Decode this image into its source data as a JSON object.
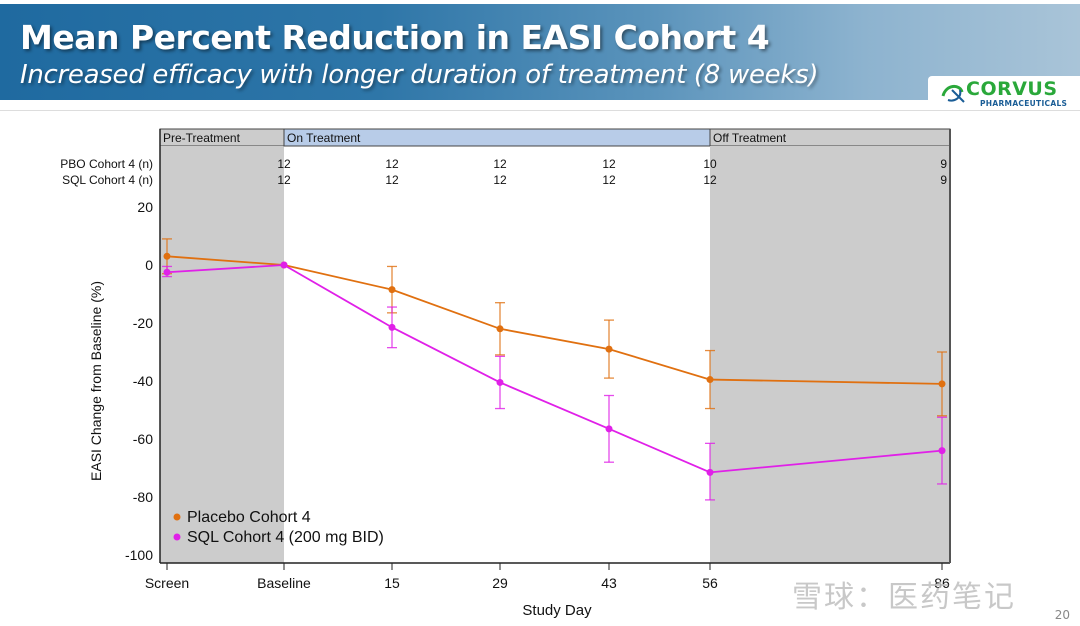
{
  "slide": {
    "title": "Mean Percent Reduction in EASI Cohort 4",
    "subtitle": "Increased efficacy with longer duration of treatment (8 weeks)",
    "logo_name": "CORVUS",
    "logo_sub": "PHARMACEUTICALS",
    "page_number": "20",
    "watermark": "雪球：医药笔记"
  },
  "chart_data": {
    "type": "line",
    "xlabel": "Study Day",
    "ylabel": "EASI Change from Baseline (%)",
    "x_categories": [
      "Screen",
      "Baseline",
      "15",
      "29",
      "43",
      "56",
      "86"
    ],
    "x_values": [
      -14,
      0,
      15,
      29,
      43,
      56,
      86
    ],
    "ylim": [
      -100,
      20
    ],
    "yticks": [
      20,
      0,
      -20,
      -40,
      -60,
      -80,
      -100
    ],
    "phases": [
      {
        "label": "Pre-Treatment",
        "from": "Screen",
        "to": "Baseline",
        "color": "#cccccc"
      },
      {
        "label": "On Treatment",
        "from": "Baseline",
        "to": "56",
        "color": "#b8cce8"
      },
      {
        "label": "Off Treatment",
        "from": "56",
        "to": "86",
        "color": "#cccccc"
      }
    ],
    "n_table": [
      {
        "label": "PBO Cohort 4 (n)",
        "values": [
          "",
          "12",
          "12",
          "12",
          "12",
          "10",
          "9"
        ]
      },
      {
        "label": "SQL Cohort 4 (n)",
        "values": [
          "",
          "12",
          "12",
          "12",
          "12",
          "12",
          "9"
        ]
      }
    ],
    "series": [
      {
        "name": "Placebo Cohort 4",
        "color": "#e07010",
        "values": [
          3,
          0,
          -8.5,
          -22,
          -29,
          -39.5,
          -41
        ],
        "err_upper": [
          9,
          0,
          -0.5,
          -13,
          -19,
          -29.5,
          -30
        ],
        "err_lower": [
          -3,
          0,
          -16.5,
          -31,
          -39,
          -49.5,
          -52
        ]
      },
      {
        "name": "SQL Cohort 4 (200 mg BID)",
        "color": "#e020e8",
        "values": [
          -2.5,
          0,
          -21.5,
          -40.5,
          -56.5,
          -71.5,
          -64
        ],
        "err_upper": [
          -0.5,
          0,
          -14.5,
          -31.5,
          -45,
          -61.5,
          -52.5
        ],
        "err_lower": [
          -4,
          0,
          -28.5,
          -49.5,
          -68,
          -81,
          -75.5
        ]
      }
    ],
    "legend": {
      "position": "bottom-left"
    },
    "grid": false
  }
}
